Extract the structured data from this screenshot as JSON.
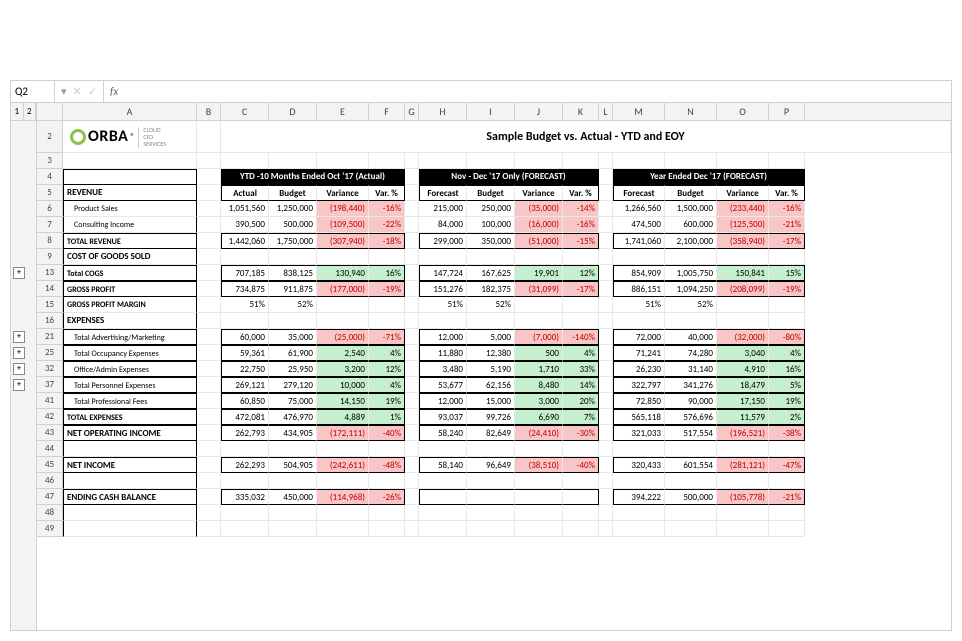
{
  "nameBox": "Q2",
  "fxValue": "",
  "outlineLevels": [
    "1",
    "2"
  ],
  "columnLetters": [
    "A",
    "B",
    "C",
    "D",
    "E",
    "F",
    "G",
    "H",
    "I",
    "J",
    "K",
    "L",
    "M",
    "N",
    "O",
    "P"
  ],
  "title": "Sample Budget vs. Actual - YTD and EOY",
  "logo": {
    "text": "ORBA",
    "reg": "®",
    "sub1": "CLOUD",
    "sub2": "CFO",
    "sub3": "SERVICES"
  },
  "sectionHeaders": {
    "s1": "YTD -10 Months Ended Oct '17 (Actual)",
    "s2": "Nov - Dec '17 Only (FORECAST)",
    "s3": "Year Ended Dec '17 (FORECAST)"
  },
  "colLabels": {
    "s1": [
      "Actual",
      "Budget",
      "Variance",
      "Var. %"
    ],
    "s2": [
      "Forecast",
      "Budget",
      "Variance",
      "Var. %"
    ],
    "s3": [
      "Forecast",
      "Budget",
      "Variance",
      "Var. %"
    ]
  },
  "outlineButtons": [
    {
      "row": "13",
      "label": "+"
    },
    {
      "row": "21",
      "label": "+"
    },
    {
      "row": "25",
      "label": "+"
    },
    {
      "row": "32",
      "label": "+"
    },
    {
      "row": "37",
      "label": "+"
    }
  ],
  "rows": [
    {
      "rn": "5",
      "label": "REVENUE",
      "cls": "b"
    },
    {
      "rn": "6",
      "label": "Product Sales",
      "cls": "sm",
      "s1": [
        "1,051,560",
        "1,250,000",
        "(198,440)",
        "-16%"
      ],
      "v1": [
        "",
        "",
        "neg bg-red",
        "neg bg-red"
      ],
      "s2": [
        "215,000",
        "250,000",
        "(35,000)",
        "-14%"
      ],
      "v2": [
        "",
        "",
        "neg bg-red",
        "neg bg-red"
      ],
      "s3": [
        "1,266,560",
        "1,500,000",
        "(233,440)",
        "-16%"
      ],
      "v3": [
        "",
        "",
        "neg bg-red",
        "neg bg-red"
      ]
    },
    {
      "rn": "7",
      "label": "Consulting Income",
      "cls": "sm",
      "s1": [
        "390,500",
        "500,000",
        "(109,500)",
        "-22%"
      ],
      "v1": [
        "",
        "",
        "neg bg-red",
        "neg bg-red"
      ],
      "s2": [
        "84,000",
        "100,000",
        "(16,000)",
        "-16%"
      ],
      "v2": [
        "",
        "",
        "neg bg-red",
        "neg bg-red"
      ],
      "s3": [
        "474,500",
        "600,000",
        "(125,500)",
        "-21%"
      ],
      "v3": [
        "",
        "",
        "neg bg-red",
        "neg bg-red"
      ]
    },
    {
      "rn": "8",
      "label": "TOTAL REVENUE",
      "cls": "sm b",
      "box": true,
      "s1": [
        "1,442,060",
        "1,750,000",
        "(307,940)",
        "-18%"
      ],
      "v1": [
        "",
        "",
        "neg bg-red",
        "neg bg-red"
      ],
      "s2": [
        "299,000",
        "350,000",
        "(51,000)",
        "-15%"
      ],
      "v2": [
        "",
        "",
        "neg bg-red",
        "neg bg-red"
      ],
      "s3": [
        "1,741,060",
        "2,100,000",
        "(358,940)",
        "-17%"
      ],
      "v3": [
        "",
        "",
        "neg bg-red",
        "neg bg-red"
      ]
    },
    {
      "rn": "9",
      "label": "COST OF GOODS SOLD",
      "cls": "b"
    },
    {
      "rn": "13",
      "label": "Total COGS",
      "cls": "sm b",
      "box": true,
      "s1": [
        "707,185",
        "838,125",
        "130,940",
        "16%"
      ],
      "v1": [
        "",
        "",
        "bg-grn",
        "bg-grn"
      ],
      "s2": [
        "147,724",
        "167,625",
        "19,901",
        "12%"
      ],
      "v2": [
        "",
        "",
        "bg-grn",
        "bg-grn"
      ],
      "s3": [
        "854,909",
        "1,005,750",
        "150,841",
        "15%"
      ],
      "v3": [
        "",
        "",
        "bg-grn",
        "bg-grn"
      ]
    },
    {
      "rn": "14",
      "label": "GROSS PROFIT",
      "cls": "sm b",
      "box": true,
      "s1": [
        "734,875",
        "911,875",
        "(177,000)",
        "-19%"
      ],
      "v1": [
        "",
        "",
        "neg bg-red",
        "neg bg-red"
      ],
      "s2": [
        "151,276",
        "182,375",
        "(31,099)",
        "-17%"
      ],
      "v2": [
        "",
        "",
        "neg bg-red",
        "neg bg-red"
      ],
      "s3": [
        "886,151",
        "1,094,250",
        "(208,099)",
        "-19%"
      ],
      "v3": [
        "",
        "",
        "neg bg-red",
        "neg bg-red"
      ]
    },
    {
      "rn": "15",
      "label": "GROSS PROFIT MARGIN",
      "cls": "sm b",
      "s1": [
        "51%",
        "52%",
        "",
        ""
      ],
      "v1": [
        "",
        "",
        "",
        ""
      ],
      "s2": [
        "51%",
        "52%",
        "",
        ""
      ],
      "v2": [
        "",
        "",
        "",
        ""
      ],
      "s3": [
        "51%",
        "52%",
        "",
        ""
      ],
      "v3": [
        "",
        "",
        "",
        ""
      ]
    },
    {
      "rn": "16",
      "label": "EXPENSES",
      "cls": "b"
    },
    {
      "rn": "21",
      "label": "Total Advertising/Marketing",
      "cls": "sm",
      "box": true,
      "s1": [
        "60,000",
        "35,000",
        "(25,000)",
        "-71%"
      ],
      "v1": [
        "",
        "",
        "neg bg-red",
        "neg bg-red"
      ],
      "s2": [
        "12,000",
        "5,000",
        "(7,000)",
        "-140%"
      ],
      "v2": [
        "",
        "",
        "neg bg-red",
        "neg bg-red"
      ],
      "s3": [
        "72,000",
        "40,000",
        "(32,000)",
        "-80%"
      ],
      "v3": [
        "",
        "",
        "neg bg-red",
        "neg bg-red"
      ]
    },
    {
      "rn": "25",
      "label": "Total Occupancy Expenses",
      "cls": "sm",
      "box": true,
      "s1": [
        "59,361",
        "61,900",
        "2,540",
        "4%"
      ],
      "v1": [
        "",
        "",
        "bg-grn",
        "bg-grn"
      ],
      "s2": [
        "11,880",
        "12,380",
        "500",
        "4%"
      ],
      "v2": [
        "",
        "",
        "bg-grn",
        "bg-grn"
      ],
      "s3": [
        "71,241",
        "74,280",
        "3,040",
        "4%"
      ],
      "v3": [
        "",
        "",
        "bg-grn",
        "bg-grn"
      ]
    },
    {
      "rn": "32",
      "label": "Office/Admin Expenses",
      "cls": "sm",
      "box": true,
      "s1": [
        "22,750",
        "25,950",
        "3,200",
        "12%"
      ],
      "v1": [
        "",
        "",
        "bg-grn",
        "bg-grn"
      ],
      "s2": [
        "3,480",
        "5,190",
        "1,710",
        "33%"
      ],
      "v2": [
        "",
        "",
        "bg-grn",
        "bg-grn"
      ],
      "s3": [
        "26,230",
        "31,140",
        "4,910",
        "16%"
      ],
      "v3": [
        "",
        "",
        "bg-grn",
        "bg-grn"
      ]
    },
    {
      "rn": "37",
      "label": "Total Personnel Expenses",
      "cls": "sm",
      "box": true,
      "s1": [
        "269,121",
        "279,120",
        "10,000",
        "4%"
      ],
      "v1": [
        "",
        "",
        "bg-grn",
        "bg-grn"
      ],
      "s2": [
        "53,677",
        "62,156",
        "8,480",
        "14%"
      ],
      "v2": [
        "",
        "",
        "bg-grn",
        "bg-grn"
      ],
      "s3": [
        "322,797",
        "341,276",
        "18,479",
        "5%"
      ],
      "v3": [
        "",
        "",
        "bg-grn",
        "bg-grn"
      ]
    },
    {
      "rn": "41",
      "label": "Total Professional Fees",
      "cls": "sm",
      "box": true,
      "s1": [
        "60,850",
        "75,000",
        "14,150",
        "19%"
      ],
      "v1": [
        "",
        "",
        "bg-grn",
        "bg-grn"
      ],
      "s2": [
        "12,000",
        "15,000",
        "3,000",
        "20%"
      ],
      "v2": [
        "",
        "",
        "bg-grn",
        "bg-grn"
      ],
      "s3": [
        "72,850",
        "90,000",
        "17,150",
        "19%"
      ],
      "v3": [
        "",
        "",
        "bg-grn",
        "bg-grn"
      ]
    },
    {
      "rn": "42",
      "label": "TOTAL EXPENSES",
      "cls": "sm b",
      "box": true,
      "s1": [
        "472,081",
        "476,970",
        "4,889",
        "1%"
      ],
      "v1": [
        "",
        "",
        "bg-grn",
        "bg-grn"
      ],
      "s2": [
        "93,037",
        "99,726",
        "6,690",
        "7%"
      ],
      "v2": [
        "",
        "",
        "bg-grn",
        "bg-grn"
      ],
      "s3": [
        "565,118",
        "576,696",
        "11,579",
        "2%"
      ],
      "v3": [
        "",
        "",
        "bg-grn",
        "bg-grn"
      ]
    },
    {
      "rn": "43",
      "label": "NET OPERATING INCOME",
      "cls": "b",
      "box": true,
      "s1": [
        "262,793",
        "434,905",
        "(172,111)",
        "-40%"
      ],
      "v1": [
        "",
        "",
        "neg bg-red",
        "neg bg-red"
      ],
      "s2": [
        "58,240",
        "82,649",
        "(24,410)",
        "-30%"
      ],
      "v2": [
        "",
        "",
        "neg bg-red",
        "neg bg-red"
      ],
      "s3": [
        "321,033",
        "517,554",
        "(196,521)",
        "-38%"
      ],
      "v3": [
        "",
        "",
        "neg bg-red",
        "neg bg-red"
      ]
    },
    {
      "rn": "44",
      "label": ""
    },
    {
      "rn": "45",
      "label": "NET INCOME",
      "cls": "b",
      "box": true,
      "s1": [
        "262,293",
        "504,905",
        "(242,611)",
        "-48%"
      ],
      "v1": [
        "",
        "",
        "neg bg-red",
        "neg bg-red"
      ],
      "s2": [
        "58,140",
        "96,649",
        "(38,510)",
        "-40%"
      ],
      "v2": [
        "",
        "",
        "neg bg-red",
        "neg bg-red"
      ],
      "s3": [
        "320,433",
        "601,554",
        "(281,121)",
        "-47%"
      ],
      "v3": [
        "",
        "",
        "neg bg-red",
        "neg bg-red"
      ]
    },
    {
      "rn": "46",
      "label": ""
    },
    {
      "rn": "47",
      "label": "ENDING CASH BALANCE",
      "cls": "b",
      "box": true,
      "s1": [
        "335,032",
        "450,000",
        "(114,968)",
        "-26%"
      ],
      "v1": [
        "",
        "",
        "neg bg-red",
        "neg bg-red"
      ],
      "s2": [
        "",
        "",
        "",
        ""
      ],
      "v2": [
        "",
        "",
        "",
        ""
      ],
      "s3": [
        "394,222",
        "500,000",
        "(105,778)",
        "-21%"
      ],
      "v3": [
        "",
        "",
        "neg bg-red",
        "neg bg-red"
      ]
    },
    {
      "rn": "48",
      "label": ""
    },
    {
      "rn": "49",
      "label": ""
    }
  ]
}
